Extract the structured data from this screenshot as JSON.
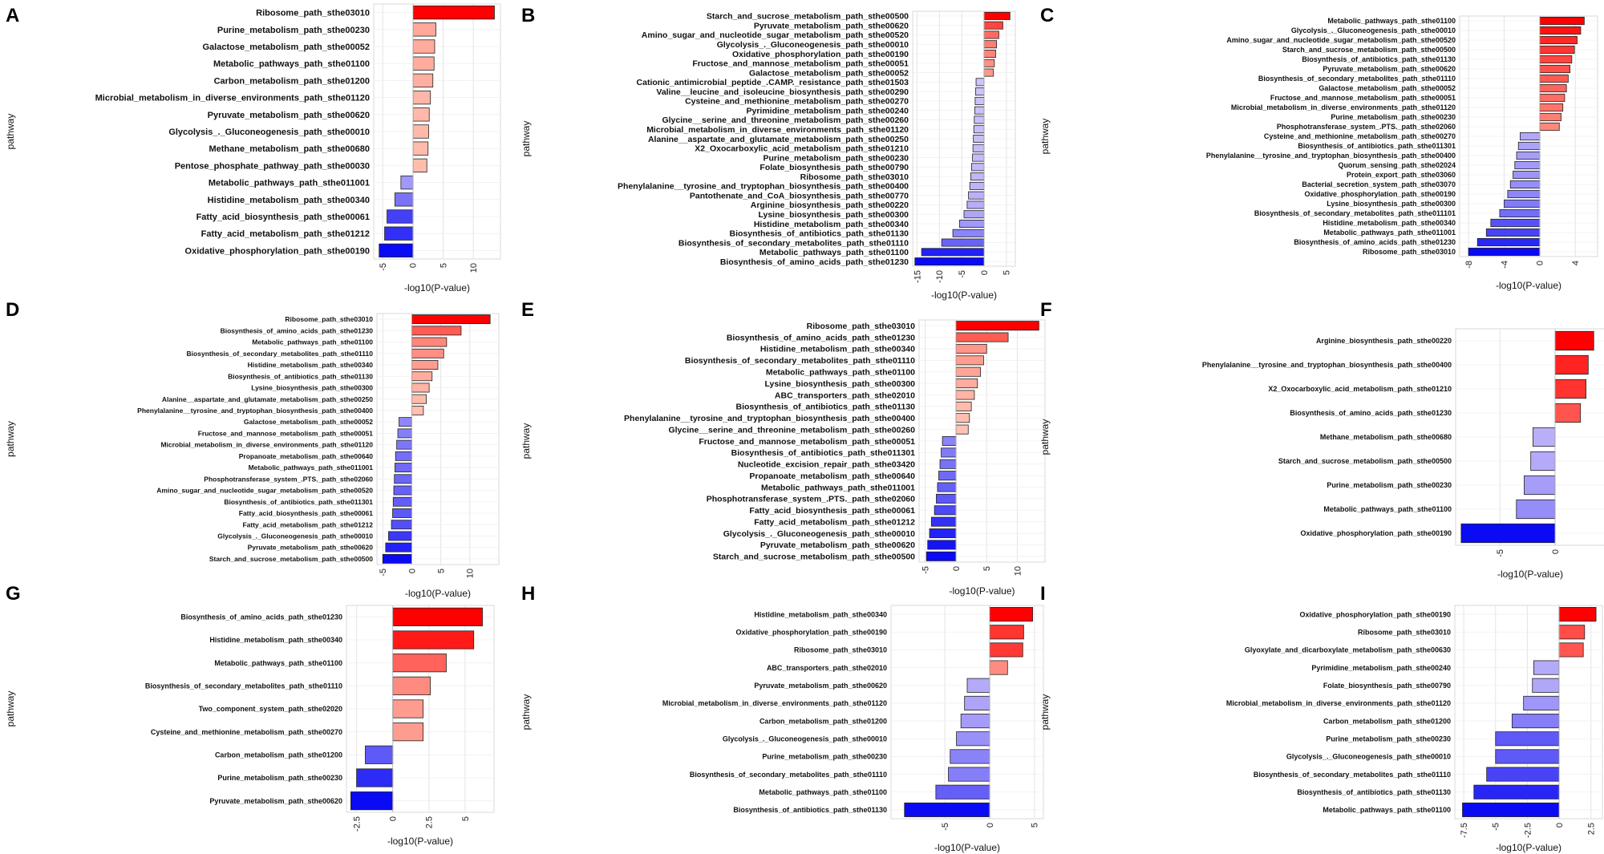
{
  "chart_data": [
    {
      "panel": "A",
      "type": "bar",
      "orientation": "horizontal",
      "xlabel": "-log10(P-value)",
      "ylabel": "pathway",
      "xlim": [
        -6.5,
        14.5
      ],
      "xticks": [
        -5,
        0,
        5,
        10
      ],
      "categories": [
        "Ribosome_path_sthe03010",
        "Purine_metabolism_path_sthe00230",
        "Galactose_metabolism_path_sthe00052",
        "Metabolic_pathways_path_sthe01100",
        "Carbon_metabolism_path_sthe01200",
        "Microbial_metabolism_in_diverse_environments_path_sthe01120",
        "Pyruvate_metabolism_path_sthe00620",
        "Glycolysis_._Gluconeogenesis_path_sthe00010",
        "Methane_metabolism_path_sthe00680",
        "Pentose_phosphate_pathway_path_sthe00030",
        "Metabolic_pathways_path_sthe011001",
        "Histidine_metabolism_path_sthe00340",
        "Fatty_acid_biosynthesis_path_sthe00061",
        "Fatty_acid_metabolism_path_sthe01212",
        "Oxidative_phosphorylation_path_sthe00190"
      ],
      "values": [
        13.5,
        3.8,
        3.6,
        3.5,
        3.3,
        2.9,
        2.7,
        2.6,
        2.5,
        2.3,
        -2.0,
        -3.0,
        -4.3,
        -4.7,
        -5.6
      ]
    },
    {
      "panel": "B",
      "type": "bar",
      "orientation": "horizontal",
      "xlabel": "-log10(P-value)",
      "ylabel": "pathway",
      "xlim": [
        -16,
        7
      ],
      "xticks": [
        -15,
        -10,
        -5,
        0,
        5
      ],
      "categories": [
        "Starch_and_sucrose_metabolism_path_sthe00500",
        "Pyruvate_metabolism_path_sthe00620",
        "Amino_sugar_and_nucleotide_sugar_metabolism_path_sthe00520",
        "Glycolysis_._Gluconeogenesis_path_sthe00010",
        "Oxidative_phosphorylation_path_sthe00190",
        "Fructose_and_mannose_metabolism_path_sthe00051",
        "Galactose_metabolism_path_sthe00052",
        "Cationic_antimicrobial_peptide_.CAMP._resistance_path_sthe01503",
        "Valine__leucine_and_isoleucine_biosynthesis_path_sthe00290",
        "Cysteine_and_methionine_metabolism_path_sthe00270",
        "Pyrimidine_metabolism_path_sthe00240",
        "Glycine__serine_and_threonine_metabolism_path_sthe00260",
        "Microbial_metabolism_in_diverse_environments_path_sthe01120",
        "Alanine__aspartate_and_glutamate_metabolism_path_sthe00250",
        "X2_Oxocarboxylic_acid_metabolism_path_sthe01210",
        "Purine_metabolism_path_sthe00230",
        "Folate_biosynthesis_path_sthe00790",
        "Ribosome_path_sthe03010",
        "Phenylalanine__tyrosine_and_tryptophan_biosynthesis_path_sthe00400",
        "Pantothenate_and_CoA_biosynthesis_path_sthe00770",
        "Arginine_biosynthesis_path_sthe00220",
        "Lysine_biosynthesis_path_sthe00300",
        "Histidine_metabolism_path_sthe00340",
        "Biosynthesis_of_antibiotics_path_sthe01130",
        "Biosynthesis_of_secondary_metabolites_path_sthe01110",
        "Metabolic_pathways_path_sthe01100",
        "Biosynthesis_of_amino_acids_path_sthe01230"
      ],
      "values": [
        5.8,
        4.2,
        3.3,
        2.8,
        2.6,
        2.3,
        2.1,
        -1.8,
        -1.9,
        -2.0,
        -2.1,
        -2.2,
        -2.3,
        -2.4,
        -2.5,
        -2.6,
        -2.8,
        -3.0,
        -3.2,
        -3.5,
        -3.8,
        -4.5,
        -5.5,
        -7.0,
        -9.5,
        -14.0,
        -15.5
      ]
    },
    {
      "panel": "C",
      "type": "bar",
      "orientation": "horizontal",
      "xlabel": "-log10(P-value)",
      "ylabel": "pathway",
      "xlim": [
        -9,
        6.5
      ],
      "xticks": [
        -8,
        -4,
        0,
        4
      ],
      "categories": [
        "Metabolic_pathways_path_sthe01100",
        "Glycolysis_._Gluconeogenesis_path_sthe00010",
        "Amino_sugar_and_nucleotide_sugar_metabolism_path_sthe00520",
        "Starch_and_sucrose_metabolism_path_sthe00500",
        "Biosynthesis_of_antibiotics_path_sthe01130",
        "Pyruvate_metabolism_path_sthe00620",
        "Biosynthesis_of_secondary_metabolites_path_sthe01110",
        "Galactose_metabolism_path_sthe00052",
        "Fructose_and_mannose_metabolism_path_sthe00051",
        "Microbial_metabolism_in_diverse_environments_path_sthe01120",
        "Purine_metabolism_path_sthe00230",
        "Phosphotransferase_system_.PTS._path_sthe02060",
        "Cysteine_and_methionine_metabolism_path_sthe00270",
        "Biosynthesis_of_antibiotics_path_sthe011301",
        "Phenylalanine__tyrosine_and_tryptophan_biosynthesis_path_sthe00400",
        "Quorum_sensing_path_sthe02024",
        "Protein_export_path_sthe03060",
        "Bacterial_secretion_system_path_sthe03070",
        "Oxidative_phosphorylation_path_sthe00190",
        "Lysine_biosynthesis_path_sthe00300",
        "Biosynthesis_of_secondary_metabolites_path_sthe011101",
        "Histidine_metabolism_path_sthe00340",
        "Metabolic_pathways_path_sthe011001",
        "Biosynthesis_of_amino_acids_path_sthe01230",
        "Ribosome_path_sthe03010"
      ],
      "values": [
        5.0,
        4.6,
        4.2,
        3.9,
        3.6,
        3.4,
        3.2,
        3.0,
        2.8,
        2.6,
        2.4,
        2.2,
        -2.2,
        -2.4,
        -2.6,
        -2.8,
        -3.0,
        -3.3,
        -3.6,
        -4.0,
        -4.5,
        -5.5,
        -6.0,
        -7.0,
        -8.0
      ]
    },
    {
      "panel": "D",
      "type": "bar",
      "orientation": "horizontal",
      "xlabel": "-log10(P-value)",
      "ylabel": "pathway",
      "xlim": [
        -6,
        15
      ],
      "xticks": [
        -5,
        0,
        5,
        10
      ],
      "categories": [
        "Ribosome_path_sthe03010",
        "Biosynthesis_of_amino_acids_path_sthe01230",
        "Metabolic_pathways_path_sthe01100",
        "Biosynthesis_of_secondary_metabolites_path_sthe01110",
        "Histidine_metabolism_path_sthe00340",
        "Biosynthesis_of_antibiotics_path_sthe01130",
        "Lysine_biosynthesis_path_sthe00300",
        "Alanine__aspartate_and_glutamate_metabolism_path_sthe00250",
        "Phenylalanine__tyrosine_and_tryptophan_biosynthesis_path_sthe00400",
        "Galactose_metabolism_path_sthe00052",
        "Fructose_and_mannose_metabolism_path_sthe00051",
        "Microbial_metabolism_in_diverse_environments_path_sthe01120",
        "Propanoate_metabolism_path_sthe00640",
        "Metabolic_pathways_path_sthe011001",
        "Phosphotransferase_system_.PTS._path_sthe02060",
        "Amino_sugar_and_nucleotide_sugar_metabolism_path_sthe00520",
        "Biosynthesis_of_antibiotics_path_sthe011301",
        "Fatty_acid_biosynthesis_path_sthe00061",
        "Fatty_acid_metabolism_path_sthe01212",
        "Glycolysis_._Gluconeogenesis_path_sthe00010",
        "Pyruvate_metabolism_path_sthe00620",
        "Starch_and_sucrose_metabolism_path_sthe00500"
      ],
      "values": [
        13.5,
        8.5,
        6.0,
        5.5,
        4.5,
        3.5,
        3.0,
        2.5,
        2.0,
        -2.2,
        -2.4,
        -2.6,
        -2.8,
        -2.9,
        -3.0,
        -3.1,
        -3.2,
        -3.3,
        -3.5,
        -4.0,
        -4.5,
        -5.0
      ]
    },
    {
      "panel": "E",
      "type": "bar",
      "orientation": "horizontal",
      "xlabel": "-log10(P-value)",
      "ylabel": "pathway",
      "xlim": [
        -6,
        14.5
      ],
      "xticks": [
        -5,
        0,
        5,
        10
      ],
      "categories": [
        "Ribosome_path_sthe03010",
        "Biosynthesis_of_amino_acids_path_sthe01230",
        "Histidine_metabolism_path_sthe00340",
        "Biosynthesis_of_secondary_metabolites_path_sthe01110",
        "Metabolic_pathways_path_sthe01100",
        "Lysine_biosynthesis_path_sthe00300",
        "ABC_transporters_path_sthe02010",
        "Biosynthesis_of_antibiotics_path_sthe01130",
        "Phenylalanine__tyrosine_and_tryptophan_biosynthesis_path_sthe00400",
        "Glycine__serine_and_threonine_metabolism_path_sthe00260",
        "Fructose_and_mannose_metabolism_path_sthe00051",
        "Biosynthesis_of_antibiotics_path_sthe011301",
        "Nucleotide_excision_repair_path_sthe03420",
        "Propanoate_metabolism_path_sthe00640",
        "Metabolic_pathways_path_sthe011001",
        "Phosphotransferase_system_.PTS._path_sthe02060",
        "Fatty_acid_biosynthesis_path_sthe00061",
        "Fatty_acid_metabolism_path_sthe01212",
        "Glycolysis_._Gluconeogenesis_path_sthe00010",
        "Pyruvate_metabolism_path_sthe00620",
        "Starch_and_sucrose_metabolism_path_sthe00500"
      ],
      "values": [
        13.5,
        8.5,
        5.0,
        4.5,
        4.0,
        3.5,
        3.0,
        2.5,
        2.2,
        2.0,
        -2.2,
        -2.4,
        -2.6,
        -2.8,
        -3.0,
        -3.2,
        -3.5,
        -4.0,
        -4.3,
        -4.6,
        -4.8
      ]
    },
    {
      "panel": "F",
      "type": "bar",
      "orientation": "horizontal",
      "xlabel": "-log10(P-value)",
      "ylabel": "pathway",
      "xlim": [
        -9,
        4.5
      ],
      "xticks": [
        -5,
        0
      ],
      "categories": [
        "Arginine_biosynthesis_path_sthe00220",
        "Phenylalanine__tyrosine_and_tryptophan_biosynthesis_path_sthe00400",
        "X2_Oxocarboxylic_acid_metabolism_path_sthe01210",
        "Biosynthesis_of_amino_acids_path_sthe01230",
        "Methane_metabolism_path_sthe00680",
        "Starch_and_sucrose_metabolism_path_sthe00500",
        "Purine_metabolism_path_sthe00230",
        "Metabolic_pathways_path_sthe01100",
        "Oxidative_phosphorylation_path_sthe00190"
      ],
      "values": [
        3.5,
        3.0,
        2.8,
        2.3,
        -2.0,
        -2.2,
        -2.8,
        -3.5,
        -8.5
      ]
    },
    {
      "panel": "G",
      "type": "bar",
      "orientation": "horizontal",
      "xlabel": "-log10(P-value)",
      "ylabel": "pathway",
      "xlim": [
        -3.2,
        7.0
      ],
      "xticks": [
        -2.5,
        0.0,
        2.5,
        5.0
      ],
      "categories": [
        "Biosynthesis_of_amino_acids_path_sthe01230",
        "Histidine_metabolism_path_sthe00340",
        "Metabolic_pathways_path_sthe01100",
        "Biosynthesis_of_secondary_metabolites_path_sthe01110",
        "Two_component_system_path_sthe02020",
        "Cysteine_and_methionine_metabolism_path_sthe00270",
        "Carbon_metabolism_path_sthe01200",
        "Purine_metabolism_path_sthe00230",
        "Pyruvate_metabolism_path_sthe00620"
      ],
      "values": [
        6.2,
        5.6,
        3.7,
        2.6,
        2.1,
        2.1,
        -1.9,
        -2.5,
        -2.9
      ]
    },
    {
      "panel": "H",
      "type": "bar",
      "orientation": "horizontal",
      "xlabel": "-log10(P-value)",
      "ylabel": "pathway",
      "xlim": [
        -11,
        6
      ],
      "xticks": [
        -5,
        0,
        5
      ],
      "categories": [
        "Histidine_metabolism_path_sthe00340",
        "Oxidative_phosphorylation_path_sthe00190",
        "Ribosome_path_sthe03010",
        "ABC_transporters_path_sthe02010",
        "Pyruvate_metabolism_path_sthe00620",
        "Microbial_metabolism_in_diverse_environments_path_sthe01120",
        "Carbon_metabolism_path_sthe01200",
        "Glycolysis_._Gluconeogenesis_path_sthe00010",
        "Purine_metabolism_path_sthe00230",
        "Biosynthesis_of_secondary_metabolites_path_sthe01110",
        "Metabolic_pathways_path_sthe01100",
        "Biosynthesis_of_antibiotics_path_sthe01130"
      ],
      "values": [
        4.8,
        3.8,
        3.7,
        2.0,
        -2.5,
        -2.8,
        -3.2,
        -3.7,
        -4.4,
        -4.6,
        -6.0,
        -9.5
      ]
    },
    {
      "panel": "I",
      "type": "bar",
      "orientation": "horizontal",
      "xlabel": "-log10(P-value)",
      "ylabel": "pathway",
      "xlim": [
        -8.2,
        3.4
      ],
      "xticks": [
        -7.5,
        -5.0,
        -2.5,
        0.0,
        2.5
      ],
      "categories": [
        "Oxidative_phosphorylation_path_sthe00190",
        "Ribosome_path_sthe03010",
        "Glyoxylate_and_dicarboxylate_metabolism_path_sthe00630",
        "Pyrimidine_metabolism_path_sthe00240",
        "Folate_biosynthesis_path_sthe00790",
        "Microbial_metabolism_in_diverse_environments_path_sthe01120",
        "Carbon_metabolism_path_sthe01200",
        "Purine_metabolism_path_sthe00230",
        "Glycolysis_._Gluconeogenesis_path_sthe00010",
        "Biosynthesis_of_secondary_metabolites_path_sthe01110",
        "Biosynthesis_of_antibiotics_path_sthe01130",
        "Metabolic_pathways_path_sthe01100"
      ],
      "values": [
        2.9,
        2.0,
        1.9,
        -2.0,
        -2.1,
        -2.8,
        -3.7,
        -5.0,
        -5.0,
        -5.7,
        -6.7,
        -7.6
      ]
    }
  ]
}
